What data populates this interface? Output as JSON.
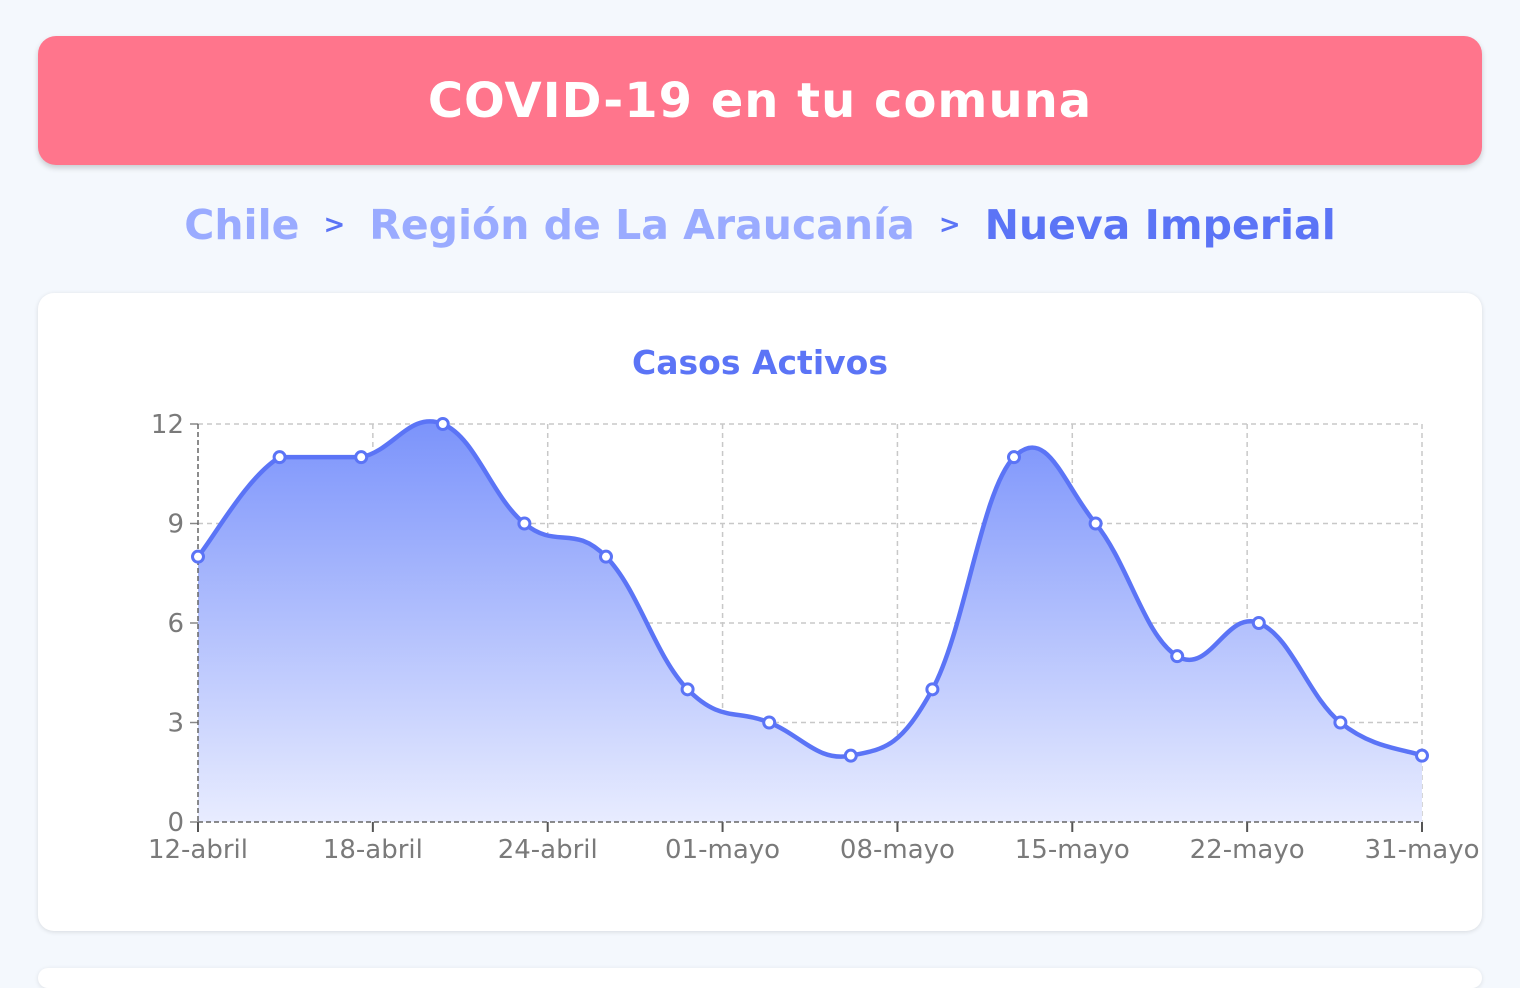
{
  "header": {
    "title": "COVID-19 en tu comuna"
  },
  "breadcrumb": {
    "items": [
      {
        "label": "Chile",
        "current": false
      },
      {
        "label": "Región de La Araucanía",
        "current": false
      },
      {
        "label": "Nueva Imperial",
        "current": true
      }
    ],
    "separator": ">"
  },
  "colors": {
    "header_bg": "#ff758c",
    "line": "#5b74f6",
    "area_top": "#7b93fb",
    "area_bottom": "#e8ecff",
    "breadcrumb_inactive": "#9aabff",
    "breadcrumb_active": "#5b74f6"
  },
  "chart_data": {
    "type": "area",
    "title": "Casos Activos",
    "xlabel": "",
    "ylabel": "",
    "ylim": [
      0,
      12
    ],
    "yticks": [
      0,
      3,
      6,
      9,
      12
    ],
    "grid": true,
    "x_tick_labels": [
      "12-abril",
      "18-abril",
      "24-abril",
      "01-mayo",
      "08-mayo",
      "15-mayo",
      "22-mayo",
      "31-mayo"
    ],
    "values": [
      8,
      11,
      11,
      12,
      9,
      8,
      4,
      3,
      2,
      4,
      11,
      9,
      5,
      6,
      3,
      2
    ]
  }
}
